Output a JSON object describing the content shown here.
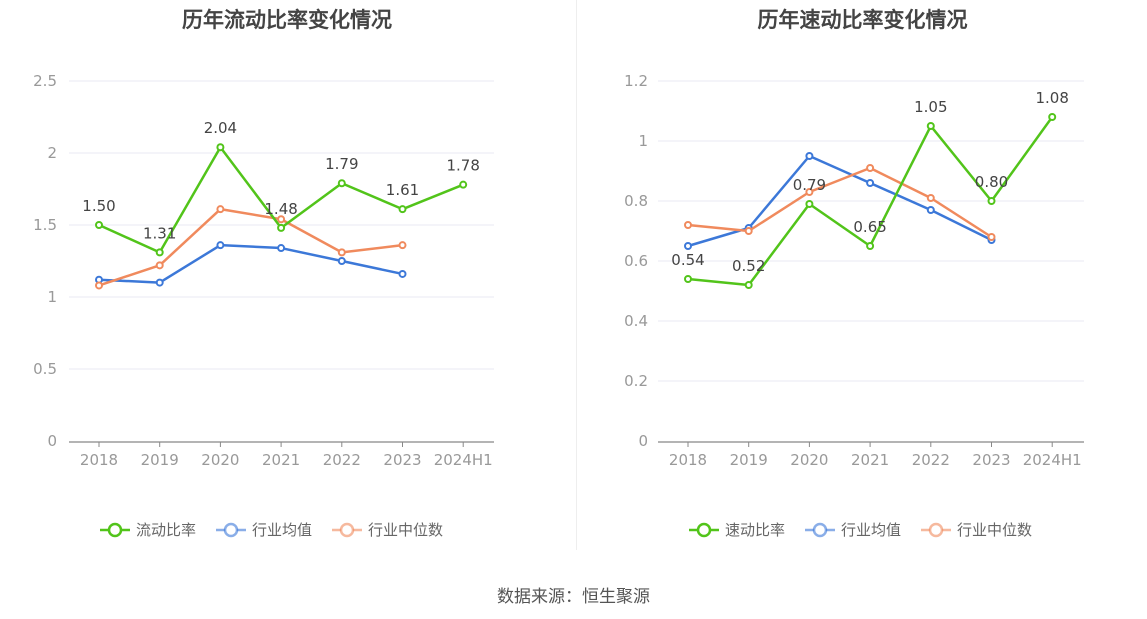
{
  "source_text": "数据来源：恒生聚源",
  "colors": {
    "primary": "#52c41a",
    "avg": "#3c78d8",
    "median": "#f08a5d",
    "grid": "#e8eaf3",
    "axis": "#888888"
  },
  "chart_data": [
    {
      "type": "line",
      "title": "历年流动比率变化情况",
      "categories": [
        "2018",
        "2019",
        "2020",
        "2021",
        "2022",
        "2023",
        "2024H1"
      ],
      "y_ticks": [
        "0",
        "0.5",
        "1",
        "1.5",
        "2",
        "2.5"
      ],
      "ylim": [
        0,
        2.5
      ],
      "grid": true,
      "legend_position": "bottom",
      "series": [
        {
          "name": "流动比率",
          "values": [
            1.5,
            1.31,
            2.04,
            1.48,
            1.79,
            1.61,
            1.78
          ],
          "labels": [
            "1.50",
            "1.31",
            "2.04",
            "1.48",
            "1.79",
            "1.61",
            "1.78"
          ]
        },
        {
          "name": "行业均值",
          "values": [
            1.12,
            1.1,
            1.36,
            1.34,
            1.25,
            1.16,
            null
          ]
        },
        {
          "name": "行业中位数",
          "values": [
            1.08,
            1.22,
            1.61,
            1.54,
            1.31,
            1.36,
            null
          ]
        }
      ]
    },
    {
      "type": "line",
      "title": "历年速动比率变化情况",
      "categories": [
        "2018",
        "2019",
        "2020",
        "2021",
        "2022",
        "2023",
        "2024H1"
      ],
      "y_ticks": [
        "0",
        "0.2",
        "0.4",
        "0.6",
        "0.8",
        "1",
        "1.2"
      ],
      "ylim": [
        0,
        1.2
      ],
      "grid": true,
      "legend_position": "bottom",
      "series": [
        {
          "name": "速动比率",
          "values": [
            0.54,
            0.52,
            0.79,
            0.65,
            1.05,
            0.8,
            1.08
          ],
          "labels": [
            "0.54",
            "0.52",
            "0.79",
            "0.65",
            "1.05",
            "0.80",
            "1.08"
          ]
        },
        {
          "name": "行业均值",
          "values": [
            0.65,
            0.71,
            0.95,
            0.86,
            0.77,
            0.67,
            null
          ]
        },
        {
          "name": "行业中位数",
          "values": [
            0.72,
            0.7,
            0.83,
            0.91,
            0.81,
            0.68,
            null
          ]
        }
      ]
    }
  ]
}
